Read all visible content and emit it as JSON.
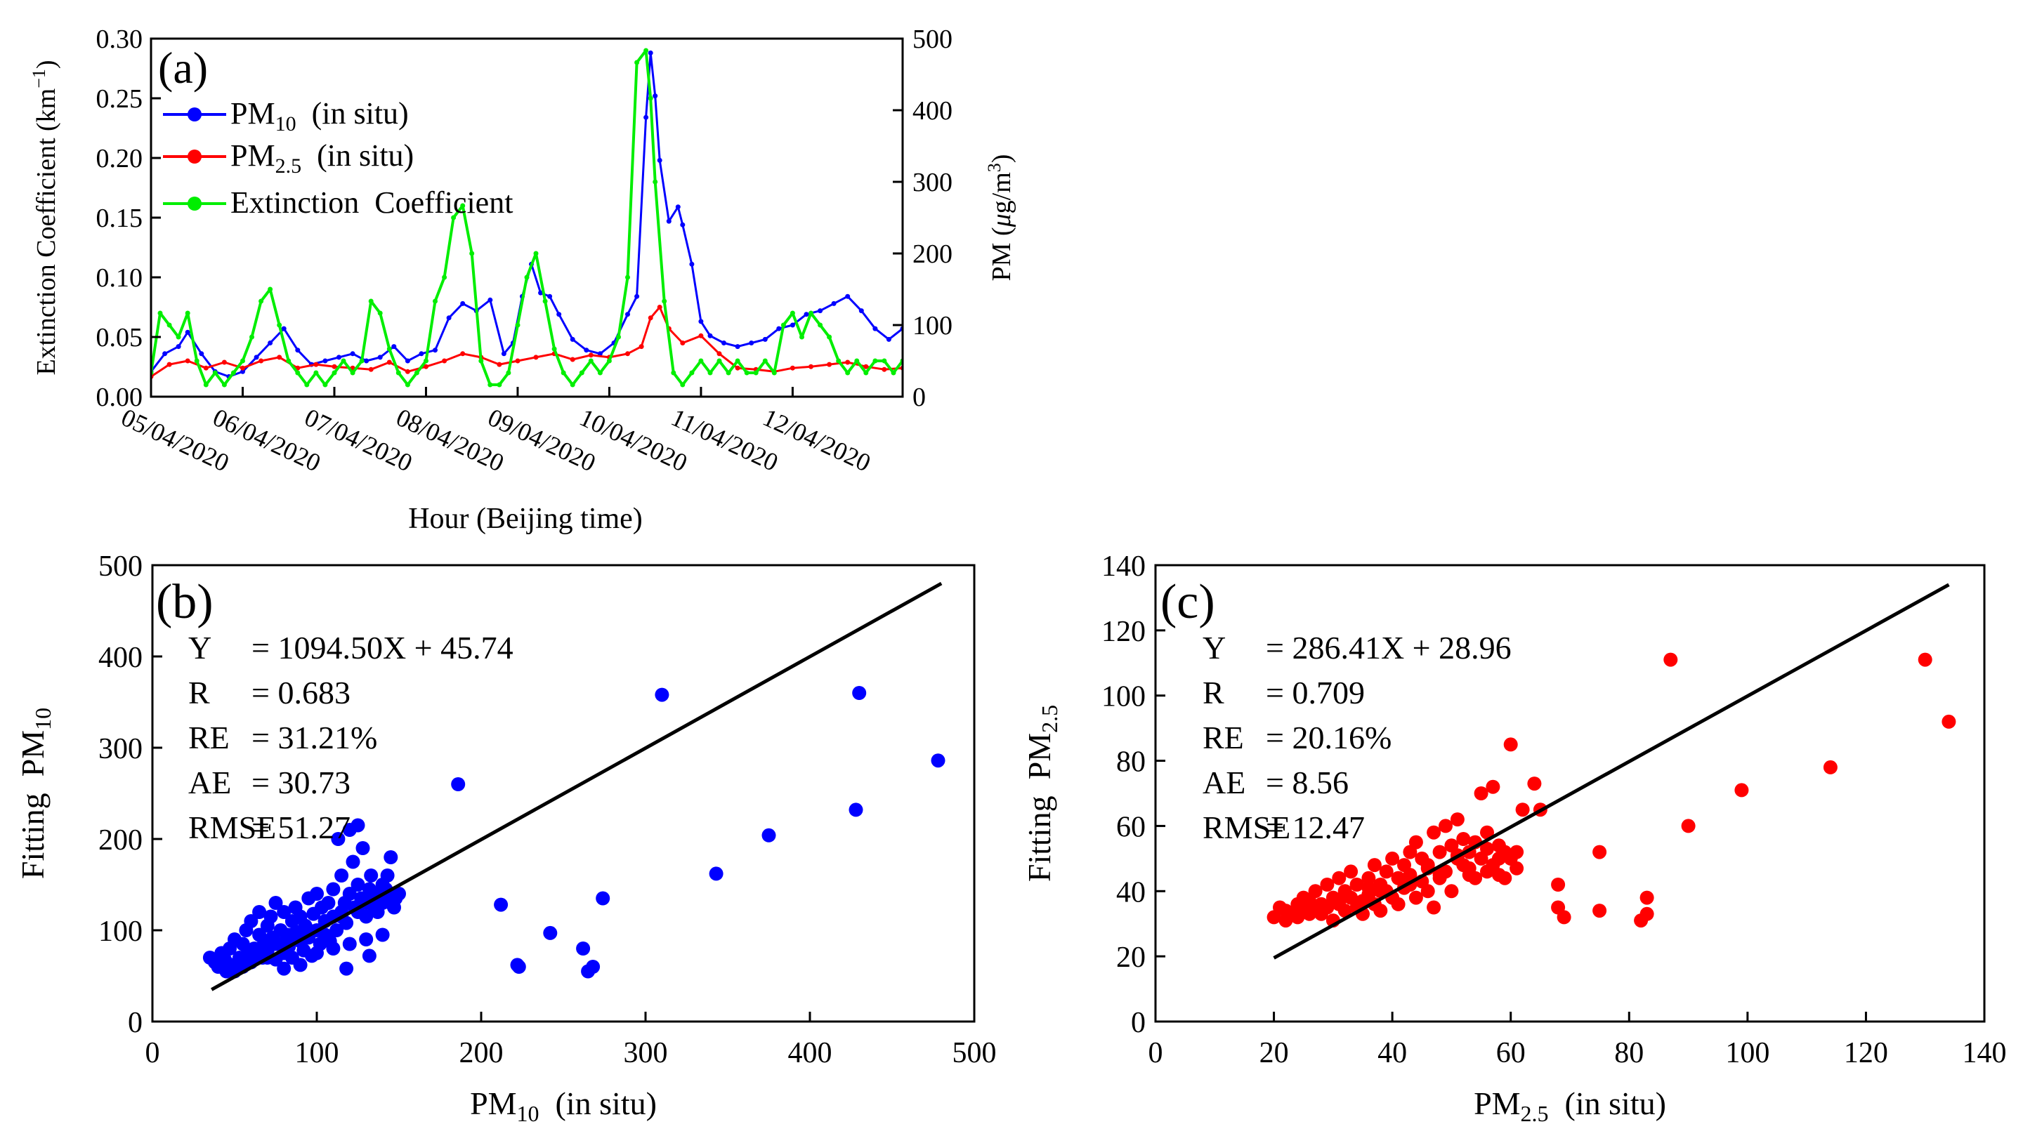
{
  "chart_data": [
    {
      "panel": "(a)",
      "type": "line",
      "title": "",
      "xlabel": "Hour (Beijing time)",
      "ylabel_left": "Extinction Coefficient (km⁻¹)",
      "ylabel_right": "PM (μg/m³)",
      "ylim_left": [
        0,
        0.3
      ],
      "ylim_right": [
        0,
        500
      ],
      "yticks_left": [
        "0.00",
        "0.05",
        "0.10",
        "0.15",
        "0.20",
        "0.25",
        "0.30"
      ],
      "yticks_right": [
        "0",
        "100",
        "200",
        "300",
        "400",
        "500"
      ],
      "x_tick_labels": [
        "05/04/2020",
        "06/04/2020",
        "07/04/2020",
        "08/04/2020",
        "09/04/2020",
        "10/04/2020",
        "11/04/2020",
        "12/04/2020"
      ],
      "x_range_days": [
        0,
        8.2
      ],
      "legend_position": "top-left",
      "series": [
        {
          "name": "PM10  (in situ)",
          "color": "#0000ff",
          "axis": "right",
          "x_days": [
            0.0,
            0.15,
            0.3,
            0.4,
            0.55,
            0.7,
            0.85,
            1.0,
            1.15,
            1.3,
            1.45,
            1.6,
            1.75,
            1.9,
            2.05,
            2.2,
            2.35,
            2.5,
            2.65,
            2.8,
            2.95,
            3.1,
            3.25,
            3.4,
            3.55,
            3.7,
            3.85,
            3.95,
            4.05,
            4.15,
            4.25,
            4.35,
            4.45,
            4.6,
            4.75,
            4.9,
            5.05,
            5.2,
            5.3,
            5.4,
            5.45,
            5.5,
            5.55,
            5.65,
            5.75,
            5.8,
            5.9,
            6.0,
            6.1,
            6.25,
            6.4,
            6.55,
            6.7,
            6.85,
            7.0,
            7.15,
            7.3,
            7.45,
            7.6,
            7.75,
            7.9,
            8.05,
            8.2
          ],
          "values": [
            35,
            60,
            70,
            90,
            60,
            35,
            28,
            35,
            55,
            75,
            95,
            65,
            45,
            50,
            55,
            60,
            50,
            55,
            70,
            50,
            60,
            65,
            110,
            130,
            120,
            135,
            60,
            75,
            140,
            185,
            145,
            140,
            115,
            80,
            65,
            60,
            75,
            115,
            140,
            390,
            480,
            420,
            330,
            245,
            265,
            240,
            185,
            105,
            85,
            75,
            70,
            75,
            80,
            95,
            100,
            115,
            120,
            130,
            140,
            120,
            95,
            80,
            95
          ]
        },
        {
          "name": "PM2.5  (in situ)",
          "color": "#ff0000",
          "axis": "right",
          "x_days": [
            0.0,
            0.2,
            0.4,
            0.6,
            0.8,
            1.0,
            1.2,
            1.4,
            1.6,
            1.8,
            2.0,
            2.2,
            2.4,
            2.6,
            2.8,
            3.0,
            3.2,
            3.4,
            3.6,
            3.8,
            4.0,
            4.2,
            4.4,
            4.6,
            4.8,
            5.0,
            5.2,
            5.35,
            5.45,
            5.55,
            5.65,
            5.8,
            6.0,
            6.2,
            6.4,
            6.6,
            6.8,
            7.0,
            7.2,
            7.4,
            7.6,
            7.8,
            8.0,
            8.2
          ],
          "values": [
            28,
            45,
            50,
            40,
            48,
            40,
            50,
            55,
            40,
            45,
            42,
            40,
            38,
            48,
            35,
            42,
            50,
            60,
            55,
            45,
            50,
            55,
            60,
            52,
            58,
            55,
            60,
            70,
            110,
            125,
            95,
            75,
            85,
            60,
            40,
            38,
            35,
            40,
            42,
            45,
            48,
            42,
            38,
            40
          ]
        },
        {
          "name": "Extinction  Coefficient",
          "color": "#00ee00",
          "axis": "left",
          "x_days": [
            0.0,
            0.1,
            0.2,
            0.3,
            0.4,
            0.5,
            0.6,
            0.7,
            0.8,
            0.9,
            1.0,
            1.1,
            1.2,
            1.3,
            1.4,
            1.5,
            1.6,
            1.7,
            1.8,
            1.9,
            2.0,
            2.1,
            2.2,
            2.3,
            2.4,
            2.5,
            2.6,
            2.7,
            2.8,
            2.9,
            3.0,
            3.1,
            3.2,
            3.3,
            3.4,
            3.5,
            3.6,
            3.7,
            3.8,
            3.9,
            4.0,
            4.1,
            4.2,
            4.3,
            4.4,
            4.5,
            4.6,
            4.7,
            4.8,
            4.9,
            5.0,
            5.1,
            5.2,
            5.3,
            5.4,
            5.45,
            5.5,
            5.6,
            5.7,
            5.8,
            5.9,
            6.0,
            6.1,
            6.2,
            6.3,
            6.4,
            6.5,
            6.6,
            6.7,
            6.8,
            6.9,
            7.0,
            7.1,
            7.2,
            7.3,
            7.4,
            7.5,
            7.6,
            7.7,
            7.8,
            7.9,
            8.0,
            8.1,
            8.2
          ],
          "values": [
            0.02,
            0.07,
            0.06,
            0.05,
            0.07,
            0.03,
            0.01,
            0.02,
            0.01,
            0.02,
            0.03,
            0.05,
            0.08,
            0.09,
            0.06,
            0.03,
            0.02,
            0.01,
            0.02,
            0.01,
            0.02,
            0.03,
            0.02,
            0.03,
            0.08,
            0.07,
            0.04,
            0.02,
            0.01,
            0.02,
            0.03,
            0.08,
            0.1,
            0.15,
            0.16,
            0.12,
            0.03,
            0.01,
            0.01,
            0.02,
            0.06,
            0.1,
            0.12,
            0.08,
            0.04,
            0.02,
            0.01,
            0.02,
            0.03,
            0.02,
            0.03,
            0.05,
            0.1,
            0.28,
            0.29,
            0.25,
            0.18,
            0.08,
            0.02,
            0.01,
            0.02,
            0.03,
            0.02,
            0.03,
            0.02,
            0.03,
            0.02,
            0.02,
            0.03,
            0.02,
            0.06,
            0.07,
            0.05,
            0.07,
            0.06,
            0.05,
            0.03,
            0.02,
            0.03,
            0.02,
            0.03,
            0.03,
            0.02,
            0.03
          ]
        }
      ]
    },
    {
      "panel": "(b)",
      "type": "scatter",
      "title": "",
      "xlabel": "PM10  (in situ)",
      "ylabel": "Fitting  PM10",
      "xlim": [
        0,
        500
      ],
      "ylim": [
        0,
        500
      ],
      "xticks": [
        "0",
        "100",
        "200",
        "300",
        "400",
        "500"
      ],
      "yticks": [
        "0",
        "100",
        "200",
        "300",
        "400",
        "500"
      ],
      "point_color": "#0000ff",
      "fit_line": [
        [
          36,
          35
        ],
        [
          480,
          480
        ]
      ],
      "stats": [
        {
          "key": "Y",
          "value": "= 1094.50X + 45.74"
        },
        {
          "key": "R",
          "value": "= 0.683"
        },
        {
          "key": "RE",
          "value": "= 31.21%"
        },
        {
          "key": "AE",
          "value": "= 30.73"
        },
        {
          "key": "RMSE",
          "value": "= 51.27"
        }
      ],
      "x": [
        35,
        38,
        40,
        42,
        44,
        45,
        47,
        48,
        50,
        52,
        53,
        55,
        55,
        57,
        58,
        60,
        60,
        62,
        63,
        65,
        65,
        67,
        68,
        70,
        70,
        72,
        73,
        75,
        75,
        77,
        78,
        80,
        80,
        82,
        83,
        85,
        85,
        87,
        88,
        90,
        90,
        92,
        93,
        95,
        95,
        97,
        98,
        100,
        100,
        102,
        103,
        105,
        105,
        107,
        108,
        110,
        110,
        112,
        113,
        115,
        115,
        117,
        118,
        120,
        120,
        122,
        123,
        125,
        125,
        127,
        128,
        130,
        130,
        132,
        133,
        135,
        135,
        137,
        138,
        140,
        140,
        142,
        143,
        145,
        145,
        147,
        148,
        150,
        118,
        132,
        186,
        212,
        222,
        223,
        242,
        262,
        265,
        268,
        274,
        310,
        343,
        375,
        428,
        430,
        478,
        45,
        50,
        60,
        70,
        80,
        90,
        100,
        110,
        120,
        130,
        140,
        55,
        65,
        75,
        85,
        95,
        105,
        115,
        125,
        135,
        145
      ],
      "y": [
        70,
        65,
        60,
        75,
        68,
        55,
        80,
        62,
        90,
        58,
        70,
        85,
        60,
        100,
        75,
        65,
        110,
        80,
        72,
        95,
        120,
        70,
        88,
        105,
        78,
        115,
        92,
        68,
        130,
        85,
        100,
        75,
        120,
        95,
        82,
        110,
        70,
        125,
        98,
        88,
        115,
        78,
        105,
        135,
        92,
        72,
        118,
        100,
        140,
        85,
        125,
        110,
        95,
        130,
        88,
        145,
        115,
        100,
        200,
        120,
        160,
        130,
        108,
        210,
        140,
        175,
        125,
        150,
        215,
        135,
        190,
        115,
        130,
        145,
        160,
        125,
        140,
        120,
        135,
        150,
        130,
        145,
        160,
        180,
        140,
        125,
        135,
        140,
        58,
        72,
        260,
        128,
        62,
        60,
        97,
        80,
        55,
        60,
        135,
        358,
        162,
        204,
        232,
        360,
        286,
        60,
        55,
        65,
        70,
        58,
        62,
        75,
        80,
        85,
        90,
        95,
        70,
        75,
        85,
        95,
        100,
        110,
        115,
        120,
        125,
        130
      ]
    },
    {
      "panel": "(c)",
      "type": "scatter",
      "title": "",
      "xlabel": "PM2.5  (in situ)",
      "ylabel": "Fitting  PM2.5",
      "xlim": [
        0,
        140
      ],
      "ylim": [
        0,
        140
      ],
      "xticks": [
        "0",
        "20",
        "40",
        "60",
        "80",
        "100",
        "120",
        "140"
      ],
      "yticks": [
        "0",
        "20",
        "40",
        "60",
        "80",
        "100",
        "120",
        "140"
      ],
      "point_color": "#ff0000",
      "fit_line": [
        [
          20,
          19.5
        ],
        [
          134,
          134
        ]
      ],
      "stats": [
        {
          "key": "Y",
          "value": "= 286.41X + 28.96"
        },
        {
          "key": "R",
          "value": "= 0.709"
        },
        {
          "key": "RE",
          "value": "= 20.16%"
        },
        {
          "key": "AE",
          "value": "=  8.56"
        },
        {
          "key": "RMSE",
          "value": "= 12.47"
        }
      ],
      "x": [
        20,
        21,
        22,
        22,
        23,
        24,
        24,
        25,
        25,
        26,
        26,
        27,
        27,
        28,
        28,
        29,
        29,
        30,
        30,
        31,
        31,
        32,
        32,
        33,
        33,
        34,
        34,
        35,
        35,
        36,
        36,
        37,
        37,
        38,
        38,
        39,
        39,
        40,
        40,
        41,
        41,
        42,
        42,
        43,
        43,
        44,
        44,
        45,
        45,
        46,
        46,
        47,
        47,
        48,
        48,
        49,
        49,
        50,
        50,
        51,
        51,
        52,
        52,
        53,
        53,
        54,
        54,
        55,
        55,
        56,
        56,
        57,
        57,
        58,
        58,
        59,
        59,
        60,
        60,
        61,
        61,
        62,
        64,
        65,
        68,
        68,
        69,
        75,
        75,
        82,
        83,
        83,
        87,
        90,
        99,
        114,
        130,
        134,
        23,
        28,
        33,
        38,
        43,
        48,
        53,
        58,
        26,
        31,
        36,
        41,
        46,
        51,
        56
      ],
      "y": [
        32,
        35,
        31,
        34,
        33,
        36,
        32,
        35,
        38,
        33,
        37,
        34,
        40,
        36,
        33,
        42,
        35,
        38,
        31,
        44,
        36,
        40,
        34,
        38,
        46,
        35,
        42,
        37,
        33,
        44,
        39,
        48,
        36,
        42,
        34,
        46,
        40,
        38,
        50,
        44,
        36,
        48,
        41,
        52,
        45,
        38,
        55,
        43,
        50,
        40,
        47,
        58,
        35,
        52,
        44,
        60,
        46,
        54,
        40,
        50,
        62,
        48,
        56,
        45,
        52,
        44,
        55,
        70,
        50,
        46,
        58,
        72,
        48,
        54,
        45,
        52,
        44,
        50,
        85,
        47,
        52,
        65,
        73,
        65,
        42,
        35,
        32,
        52,
        34,
        31,
        33,
        38,
        111,
        60,
        71,
        78,
        111,
        92,
        33,
        36,
        38,
        40,
        42,
        45,
        47,
        50,
        34,
        37,
        41,
        44,
        48,
        51,
        53
      ]
    }
  ]
}
